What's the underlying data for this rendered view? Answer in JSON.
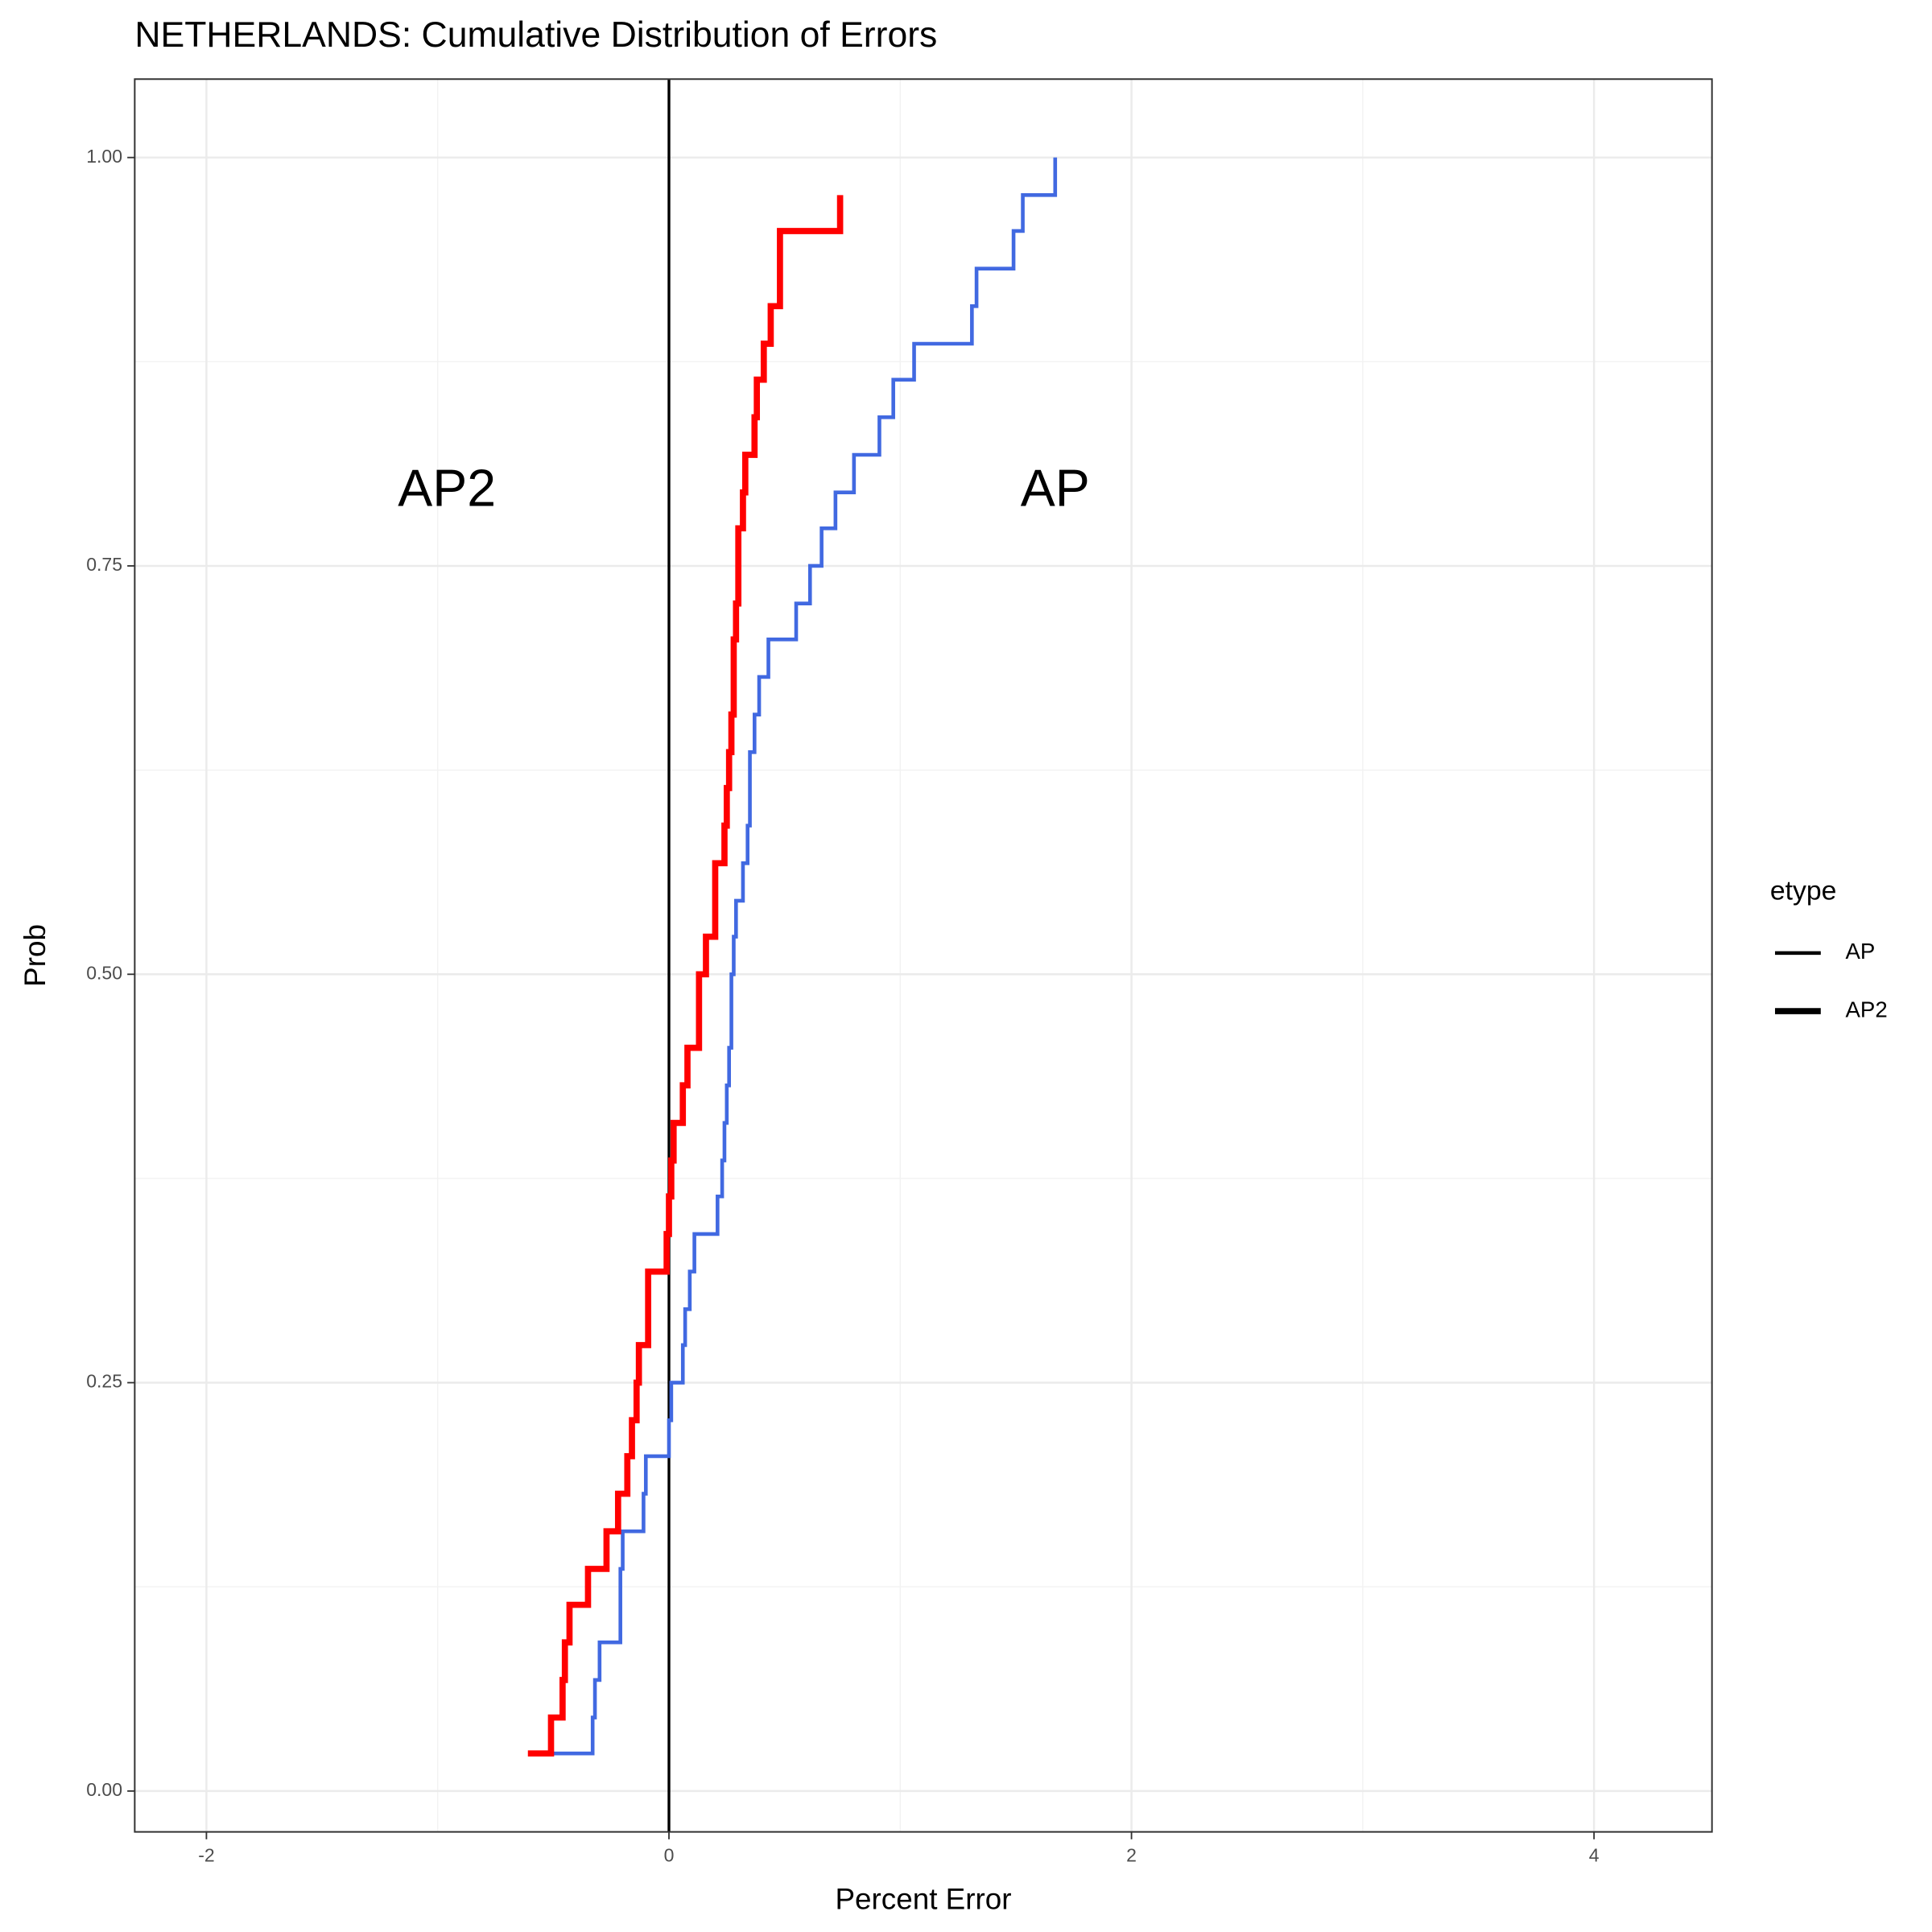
{
  "chart_data": {
    "type": "step",
    "title": "NETHERLANDS: Cumulative Distribution of Errors",
    "xlabel": "Percent Error",
    "ylabel": "Prob",
    "legend_title": "etype",
    "legend_position": "right",
    "grid": true,
    "xlim": [
      -2.31,
      4.51
    ],
    "ylim": [
      -0.025,
      1.048
    ],
    "xticks": [
      -2,
      0,
      2,
      4
    ],
    "yticks": [
      {
        "value": 0,
        "label": "0.00"
      },
      {
        "value": 0.25,
        "label": "0.25"
      },
      {
        "value": 0.5,
        "label": "0.50"
      },
      {
        "value": 0.75,
        "label": "0.75"
      },
      {
        "value": 1,
        "label": "1.00"
      }
    ],
    "vline": 0,
    "series": [
      {
        "name": "AP",
        "color": "#4169e1",
        "x": [
          -0.51,
          -0.33,
          -0.32,
          -0.3,
          -0.21,
          -0.21,
          -0.2,
          -0.11,
          -0.1,
          0,
          0.01,
          0.06,
          0.07,
          0.09,
          0.11,
          0.21,
          0.23,
          0.24,
          0.25,
          0.26,
          0.27,
          0.27,
          0.28,
          0.29,
          0.32,
          0.34,
          0.35,
          0.35,
          0.37,
          0.39,
          0.43,
          0.55,
          0.61,
          0.66,
          0.72,
          0.8,
          0.91,
          0.97,
          1.06,
          1.31,
          1.33,
          1.49,
          1.53,
          1.67
        ],
        "values": [
          0.023,
          0.045,
          0.068,
          0.091,
          0.114,
          0.136,
          0.159,
          0.182,
          0.205,
          0.227,
          0.25,
          0.273,
          0.295,
          0.318,
          0.341,
          0.364,
          0.386,
          0.409,
          0.432,
          0.455,
          0.477,
          0.5,
          0.523,
          0.545,
          0.568,
          0.591,
          0.614,
          0.636,
          0.659,
          0.682,
          0.705,
          0.727,
          0.75,
          0.773,
          0.795,
          0.818,
          0.841,
          0.864,
          0.886,
          0.909,
          0.932,
          0.955,
          0.977,
          1
        ]
      },
      {
        "name": "AP2",
        "color": "#ff0000",
        "x": [
          -0.61,
          -0.51,
          -0.46,
          -0.45,
          -0.43,
          -0.35,
          -0.27,
          -0.22,
          -0.18,
          -0.16,
          -0.14,
          -0.13,
          -0.09,
          -0.09,
          -0.01,
          0,
          0.01,
          0.02,
          0.06,
          0.08,
          0.13,
          0.13,
          0.16,
          0.2,
          0.2,
          0.24,
          0.25,
          0.26,
          0.27,
          0.28,
          0.28,
          0.29,
          0.3,
          0.3,
          0.32,
          0.33,
          0.37,
          0.38,
          0.41,
          0.44,
          0.48,
          0.48,
          0.74
        ],
        "values": [
          0.023,
          0.045,
          0.068,
          0.091,
          0.114,
          0.136,
          0.159,
          0.182,
          0.205,
          0.227,
          0.25,
          0.273,
          0.295,
          0.318,
          0.341,
          0.364,
          0.386,
          0.409,
          0.432,
          0.455,
          0.477,
          0.5,
          0.523,
          0.545,
          0.568,
          0.591,
          0.614,
          0.636,
          0.659,
          0.682,
          0.705,
          0.727,
          0.75,
          0.773,
          0.795,
          0.818,
          0.841,
          0.864,
          0.886,
          0.909,
          0.932,
          0.955,
          0.977
        ]
      }
    ],
    "annotations": [
      {
        "text": "AP2",
        "x": -0.96,
        "y": 0.795,
        "color": "#ff0000"
      },
      {
        "text": "AP",
        "x": 1.67,
        "y": 0.795,
        "color": "#4169e1"
      }
    ]
  }
}
